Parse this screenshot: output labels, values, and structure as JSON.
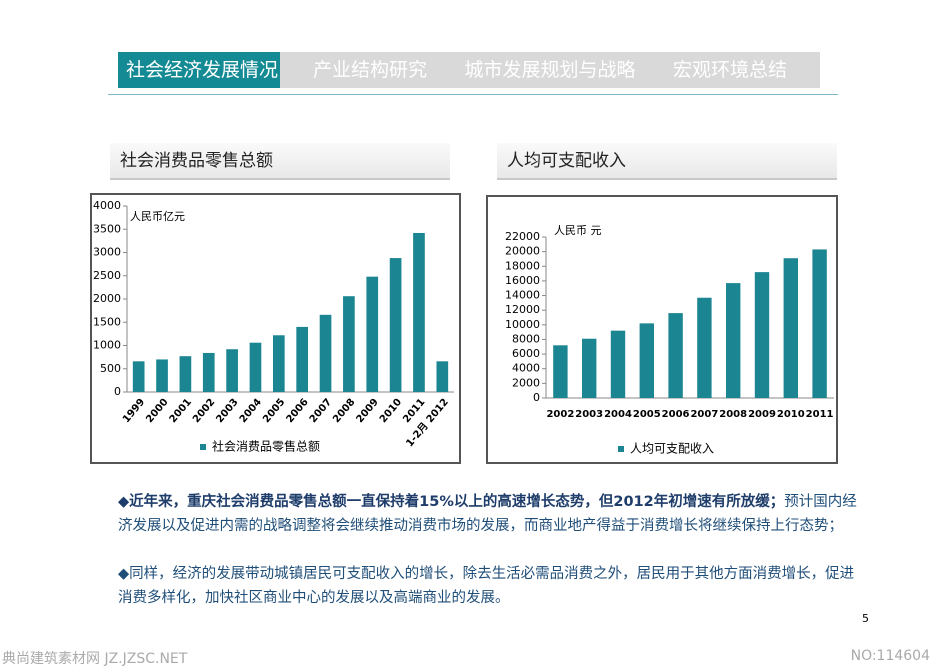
{
  "tabs": [
    "社会经济发展情况",
    "产业结构研究",
    "城市发展规划与战略",
    "宏观环境总结"
  ],
  "sections": [
    "社会消费品零售总额",
    "人均可支配收入"
  ],
  "chart_data": [
    {
      "type": "bar",
      "unit_label": "人民币亿元",
      "categories": [
        "1999",
        "2000",
        "2001",
        "2002",
        "2003",
        "2004",
        "2005",
        "2006",
        "2007",
        "2008",
        "2009",
        "2010",
        "2011",
        "1-2月 2012"
      ],
      "series": [
        {
          "name": "社会消费品零售总额",
          "color": "#1b8592",
          "values": [
            660,
            700,
            770,
            840,
            920,
            1060,
            1220,
            1400,
            1660,
            2060,
            2480,
            2880,
            3420,
            660
          ]
        }
      ],
      "ylim": [
        0,
        4000
      ],
      "yticks": [
        0,
        500,
        1000,
        1500,
        2000,
        2500,
        3000,
        3500,
        4000
      ]
    },
    {
      "type": "bar",
      "unit_label": "人民币   元",
      "categories": [
        "2002",
        "2003",
        "2004",
        "2005",
        "2006",
        "2007",
        "2008",
        "2009",
        "2010",
        "2011"
      ],
      "series": [
        {
          "name": "人均可支配收入",
          "color": "#1b8592",
          "values": [
            7200,
            8100,
            9200,
            10200,
            11600,
            13700,
            15700,
            17200,
            19100,
            20300
          ]
        }
      ],
      "ylim": [
        0,
        22000
      ],
      "yticks": [
        0,
        2000,
        4000,
        6000,
        8000,
        10000,
        12000,
        14000,
        16000,
        18000,
        20000,
        22000
      ]
    }
  ],
  "paragraphs": [
    [
      "◆近年来，重庆社会消费品零售总额一直保持着15%以上的高速增长态势，但2012年初增速有所放缓；",
      "预计国内经济发展以及促进内需的战略调整将会继续推动消费市场的发展，而商业地产得益于消费增长将继续保持上行态势；"
    ],
    [
      "◆同样，经济的发展带动城镇居民可支配收入的增长，除去生活必需品消费之外，居民用于其他方面消费增长，促进消费多样化，加快社区商业中心的发展以及高端商业的发展。"
    ]
  ],
  "page_number": "5",
  "footer_left": "典尚建筑素材网 JZ.JZSC.NET",
  "footer_right": "NO:114604"
}
